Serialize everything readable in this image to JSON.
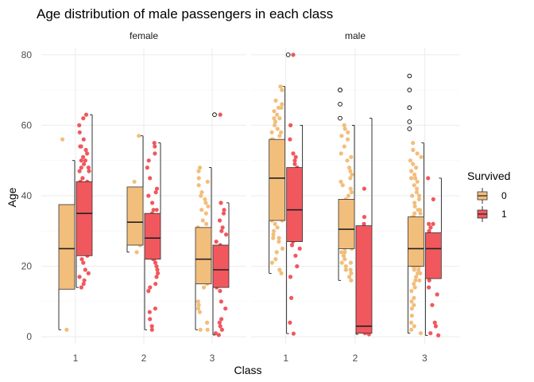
{
  "chart_data": {
    "type": "boxplot",
    "title": "Age distribution of male passengers in each class",
    "xlabel": "Class",
    "ylabel": "Age",
    "ylim": [
      -2,
      82
    ],
    "yticks": [
      0,
      20,
      40,
      60,
      80
    ],
    "categories": [
      "1",
      "2",
      "3"
    ],
    "facets": [
      "female",
      "male"
    ],
    "grid": true,
    "legend": {
      "title": "Survived",
      "position": "right",
      "entries": [
        {
          "label": "0",
          "color": "#F2BE7C"
        },
        {
          "label": "1",
          "color": "#F0585E"
        }
      ]
    },
    "boxes": [
      {
        "facet": "female",
        "class": "1",
        "survived": "0",
        "whisker_low": 2,
        "q1": 13.5,
        "median": 25,
        "q3": 37.5,
        "whisker_high": 50,
        "outliers": []
      },
      {
        "facet": "female",
        "class": "1",
        "survived": "1",
        "whisker_low": 14,
        "q1": 23,
        "median": 35,
        "q3": 44,
        "whisker_high": 63,
        "outliers": []
      },
      {
        "facet": "female",
        "class": "2",
        "survived": "0",
        "whisker_low": 24,
        "q1": 26,
        "median": 32.5,
        "q3": 42.5,
        "whisker_high": 57,
        "outliers": []
      },
      {
        "facet": "female",
        "class": "2",
        "survived": "1",
        "whisker_low": 2,
        "q1": 22,
        "median": 28,
        "q3": 35,
        "whisker_high": 55,
        "outliers": []
      },
      {
        "facet": "female",
        "class": "3",
        "survived": "0",
        "whisker_low": 2,
        "q1": 15,
        "median": 22,
        "q3": 31,
        "whisker_high": 48,
        "outliers": []
      },
      {
        "facet": "female",
        "class": "3",
        "survived": "1",
        "whisker_low": 0.5,
        "q1": 14,
        "median": 19,
        "q3": 26,
        "whisker_high": 38,
        "outliers": [
          63
        ]
      },
      {
        "facet": "male",
        "class": "1",
        "survived": "0",
        "whisker_low": 18,
        "q1": 33,
        "median": 45,
        "q3": 56,
        "whisker_high": 71,
        "outliers": []
      },
      {
        "facet": "male",
        "class": "1",
        "survived": "1",
        "whisker_low": 0.9,
        "q1": 27,
        "median": 36,
        "q3": 48,
        "whisker_high": 60,
        "outliers": [
          80
        ]
      },
      {
        "facet": "male",
        "class": "2",
        "survived": "0",
        "whisker_low": 16,
        "q1": 25,
        "median": 30.5,
        "q3": 39,
        "whisker_high": 60,
        "outliers": [
          62,
          66,
          70,
          70
        ]
      },
      {
        "facet": "male",
        "class": "2",
        "survived": "1",
        "whisker_low": 0.7,
        "q1": 1,
        "median": 3,
        "q3": 31.5,
        "whisker_high": 62,
        "outliers": []
      },
      {
        "facet": "male",
        "class": "3",
        "survived": "0",
        "whisker_low": 1,
        "q1": 20,
        "median": 25,
        "q3": 34,
        "whisker_high": 55,
        "outliers": [
          59,
          61,
          65,
          70,
          74
        ]
      },
      {
        "facet": "male",
        "class": "3",
        "survived": "1",
        "whisker_low": 0.4,
        "q1": 16.5,
        "median": 25,
        "q3": 29.5,
        "whisker_high": 45,
        "outliers": []
      }
    ],
    "jitter_points": [
      {
        "facet": "female",
        "class": "1",
        "survived": "0",
        "ages": [
          2,
          16,
          56
        ]
      },
      {
        "facet": "female",
        "class": "1",
        "survived": "1",
        "ages": [
          14,
          15,
          16,
          17,
          18,
          19,
          21,
          22,
          23,
          24,
          24,
          25,
          26,
          27,
          29,
          30,
          30,
          31,
          32,
          33,
          35,
          35,
          35,
          36,
          36,
          37,
          38,
          38,
          39,
          39,
          40,
          40,
          41,
          42,
          43,
          44,
          44,
          45,
          45,
          47,
          47,
          48,
          48,
          49,
          50,
          50,
          51,
          52,
          53,
          54,
          54,
          56,
          58,
          60,
          62,
          63
        ]
      },
      {
        "facet": "female",
        "class": "2",
        "survived": "0",
        "ages": [
          24,
          26,
          27,
          30,
          36,
          44,
          57
        ]
      },
      {
        "facet": "female",
        "class": "2",
        "survived": "1",
        "ages": [
          2,
          3,
          5,
          7,
          8,
          13,
          14,
          15,
          17,
          18,
          19,
          20,
          21,
          22,
          22,
          23,
          24,
          24,
          25,
          26,
          27,
          28,
          28,
          29,
          30,
          30,
          31,
          32,
          33,
          34,
          35,
          36,
          36,
          38,
          40,
          41,
          42,
          45,
          48,
          50,
          52,
          54,
          55
        ]
      },
      {
        "facet": "female",
        "class": "3",
        "survived": "0",
        "ages": [
          2,
          2,
          4,
          7,
          8,
          9,
          10,
          14,
          15,
          16,
          17,
          18,
          18,
          19,
          20,
          20,
          21,
          22,
          22,
          23,
          24,
          25,
          25,
          26,
          27,
          28,
          29,
          30,
          30,
          31,
          32,
          33,
          35,
          36,
          37,
          38,
          39,
          40,
          41,
          43,
          44,
          45,
          47,
          48
        ]
      },
      {
        "facet": "female",
        "class": "3",
        "survived": "1",
        "ages": [
          0.5,
          1,
          2,
          3,
          4,
          5,
          8,
          10,
          13,
          14,
          15,
          15,
          16,
          17,
          17,
          18,
          18,
          19,
          19,
          20,
          21,
          22,
          22,
          23,
          24,
          24,
          25,
          26,
          27,
          29,
          30,
          31,
          33,
          35,
          36,
          38,
          63
        ]
      },
      {
        "facet": "male",
        "class": "1",
        "survived": "0",
        "ages": [
          18,
          19,
          21,
          22,
          24,
          25,
          27,
          28,
          28,
          29,
          30,
          31,
          32,
          33,
          33,
          34,
          35,
          36,
          36,
          37,
          38,
          39,
          40,
          40,
          41,
          42,
          42,
          43,
          44,
          45,
          45,
          45,
          46,
          46,
          47,
          47,
          48,
          48,
          49,
          49,
          50,
          50,
          51,
          52,
          52,
          53,
          54,
          54,
          55,
          56,
          56,
          57,
          58,
          58,
          59,
          60,
          61,
          62,
          62,
          63,
          64,
          65,
          65,
          66,
          67,
          70,
          71
        ]
      },
      {
        "facet": "male",
        "class": "1",
        "survived": "1",
        "ages": [
          0.9,
          4,
          11,
          17,
          20,
          23,
          25,
          26,
          27,
          28,
          29,
          30,
          31,
          32,
          33,
          34,
          35,
          35,
          36,
          36,
          37,
          38,
          40,
          42,
          43,
          45,
          46,
          47,
          48,
          49,
          50,
          51,
          52,
          56,
          60,
          80
        ]
      },
      {
        "facet": "male",
        "class": "2",
        "survived": "0",
        "ages": [
          16,
          17,
          18,
          19,
          19,
          20,
          21,
          21,
          22,
          23,
          23,
          24,
          24,
          25,
          25,
          26,
          26,
          27,
          27,
          28,
          28,
          29,
          29,
          30,
          30,
          30,
          31,
          31,
          32,
          32,
          33,
          33,
          34,
          35,
          35,
          36,
          36,
          37,
          38,
          39,
          40,
          41,
          42,
          43,
          44,
          45,
          46,
          47,
          48,
          50,
          51,
          52,
          54,
          56,
          57,
          58,
          59,
          60
        ]
      },
      {
        "facet": "male",
        "class": "2",
        "survived": "1",
        "ages": [
          0.7,
          1,
          1.5,
          2,
          3,
          4,
          5,
          6,
          8,
          19,
          25,
          32,
          34,
          42
        ]
      },
      {
        "facet": "male",
        "class": "3",
        "survived": "0",
        "ages": [
          1,
          2,
          3,
          4,
          6,
          8,
          9,
          10,
          11,
          13,
          14,
          15,
          16,
          16,
          17,
          18,
          18,
          19,
          19,
          20,
          20,
          20,
          21,
          21,
          21,
          22,
          22,
          22,
          23,
          23,
          23,
          24,
          24,
          24,
          25,
          25,
          25,
          25,
          26,
          26,
          26,
          27,
          27,
          27,
          28,
          28,
          28,
          29,
          29,
          30,
          30,
          30,
          31,
          31,
          32,
          32,
          33,
          33,
          34,
          34,
          35,
          35,
          36,
          36,
          37,
          38,
          39,
          40,
          40,
          41,
          42,
          43,
          44,
          45,
          45,
          46,
          47,
          48,
          49,
          50,
          51,
          52,
          53,
          55
        ]
      },
      {
        "facet": "male",
        "class": "3",
        "survived": "1",
        "ages": [
          0.4,
          1,
          3,
          4,
          9,
          12,
          14,
          16,
          17,
          18,
          19,
          20,
          21,
          22,
          23,
          24,
          25,
          25,
          26,
          27,
          28,
          29,
          30,
          31,
          32,
          32,
          39,
          45
        ]
      }
    ]
  }
}
